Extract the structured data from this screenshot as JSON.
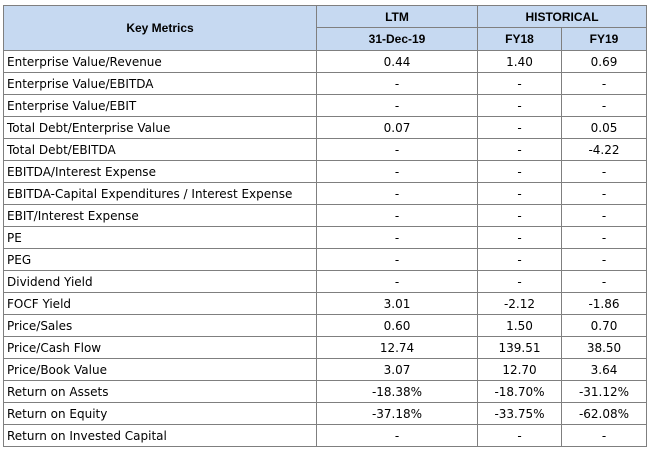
{
  "header": {
    "key_metrics": "Key Metrics",
    "ltm": "LTM",
    "historical": "HISTORICAL",
    "ltm_date": "31-Dec-19",
    "fy18": "FY18",
    "fy19": "FY19"
  },
  "rows": [
    {
      "label": "Enterprise Value/Revenue",
      "ltm": "0.44",
      "fy18": "1.40",
      "fy19": "0.69"
    },
    {
      "label": "Enterprise Value/EBITDA",
      "ltm": "-",
      "fy18": "-",
      "fy19": "-"
    },
    {
      "label": "Enterprise Value/EBIT",
      "ltm": "-",
      "fy18": "-",
      "fy19": "-"
    },
    {
      "label": "Total Debt/Enterprise Value",
      "ltm": "0.07",
      "fy18": "-",
      "fy19": "0.05"
    },
    {
      "label": "Total Debt/EBITDA",
      "ltm": "-",
      "fy18": "-",
      "fy19": "-4.22"
    },
    {
      "label": "EBITDA/Interest Expense",
      "ltm": "-",
      "fy18": "-",
      "fy19": "-"
    },
    {
      "label": "EBITDA-Capital Expenditures / Interest Expense",
      "ltm": "-",
      "fy18": "-",
      "fy19": "-"
    },
    {
      "label": "EBIT/Interest Expense",
      "ltm": "-",
      "fy18": "-",
      "fy19": "-"
    },
    {
      "label": "PE",
      "ltm": "-",
      "fy18": "-",
      "fy19": "-"
    },
    {
      "label": "PEG",
      "ltm": "-",
      "fy18": "-",
      "fy19": "-"
    },
    {
      "label": "Dividend Yield",
      "ltm": "-",
      "fy18": "-",
      "fy19": "-"
    },
    {
      "label": "FOCF Yield",
      "ltm": "3.01",
      "fy18": "-2.12",
      "fy19": "-1.86"
    },
    {
      "label": "Price/Sales",
      "ltm": "0.60",
      "fy18": "1.50",
      "fy19": "0.70"
    },
    {
      "label": "Price/Cash Flow",
      "ltm": "12.74",
      "fy18": "139.51",
      "fy19": "38.50"
    },
    {
      "label": "Price/Book Value",
      "ltm": "3.07",
      "fy18": "12.70",
      "fy19": "3.64"
    },
    {
      "label": "Return on Assets",
      "ltm": "-18.38%",
      "fy18": "-18.70%",
      "fy19": "-31.12%"
    },
    {
      "label": "Return on Equity",
      "ltm": "-37.18%",
      "fy18": "-33.75%",
      "fy19": "-62.08%"
    },
    {
      "label": "Return on Invested Capital",
      "ltm": "-",
      "fy18": "-",
      "fy19": "-"
    }
  ],
  "colors": {
    "header_background": "#c6d9f1",
    "border": "#7f7f7f"
  }
}
